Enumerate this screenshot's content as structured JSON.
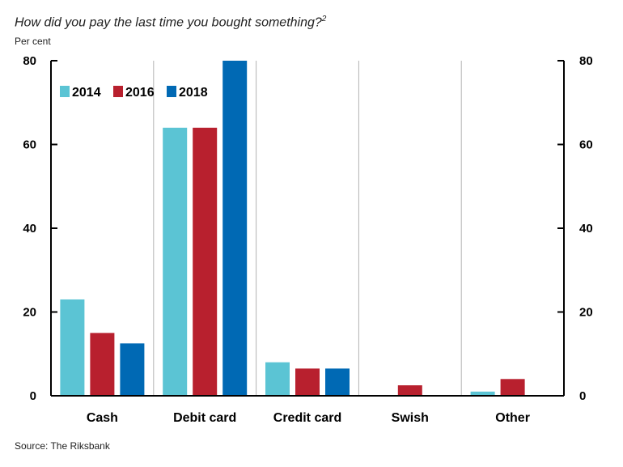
{
  "title": "How did you pay the last time you bought something?",
  "title_footnote": "2",
  "unit_label": "Per cent",
  "source": "Source: The Riksbank",
  "chart_data": {
    "type": "bar",
    "title": "How did you pay the last time you bought something?",
    "ylabel": "Per cent",
    "xlabel": "",
    "ylim": [
      0,
      80
    ],
    "yticks": [
      0,
      20,
      40,
      60,
      80
    ],
    "y_axis_sides": "left-and-right",
    "vertical_category_gridlines": true,
    "legend_position": "top-left",
    "categories": [
      "Cash",
      "Debit card",
      "Credit card",
      "Swish",
      "Other"
    ],
    "series": [
      {
        "name": "2014",
        "color": "#5bc4d4",
        "values": [
          23,
          64,
          8,
          0,
          1
        ]
      },
      {
        "name": "2016",
        "color": "#b8202e",
        "values": [
          15,
          64,
          6.5,
          2.5,
          4
        ]
      },
      {
        "name": "2018",
        "color": "#0069b4",
        "values": [
          12.5,
          80,
          6.5,
          0,
          0
        ]
      }
    ]
  }
}
